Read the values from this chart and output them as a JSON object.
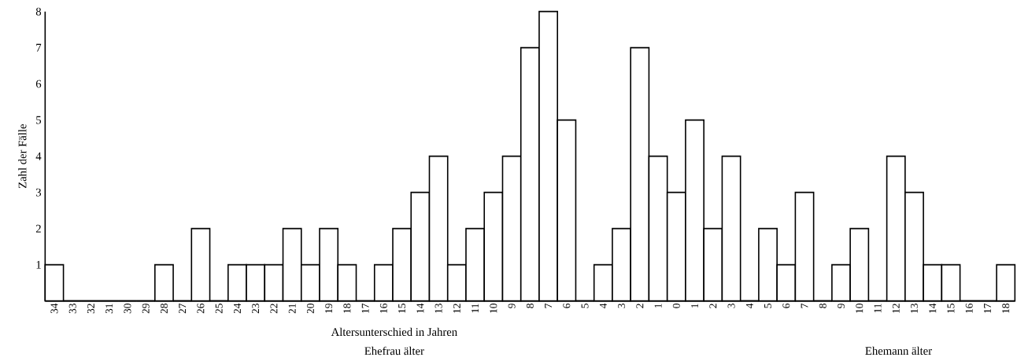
{
  "chart_data": {
    "type": "bar",
    "ylabel": "Zahl der Fälle",
    "xlabel": "Altersunterschied in Jahren",
    "annotations": [
      "Ehefrau älter",
      "Ehemann älter"
    ],
    "categories": [
      "34",
      "33",
      "32",
      "31",
      "30",
      "29",
      "28",
      "27",
      "26",
      "25",
      "24",
      "23",
      "22",
      "21",
      "20",
      "19",
      "18",
      "17",
      "16",
      "15",
      "14",
      "13",
      "12",
      "11",
      "10",
      "9",
      "8",
      "7",
      "6",
      "5",
      "4",
      "3",
      "2",
      "1",
      "0",
      "1",
      "2",
      "3",
      "4",
      "5",
      "6",
      "7",
      "8",
      "9",
      "10",
      "11",
      "12",
      "13",
      "14",
      "15",
      "16",
      "17",
      "18"
    ],
    "values": [
      1,
      0,
      0,
      0,
      0,
      0,
      1,
      0,
      2,
      0,
      1,
      1,
      1,
      2,
      1,
      2,
      1,
      0,
      1,
      2,
      3,
      4,
      1,
      2,
      3,
      4,
      7,
      8,
      5,
      0,
      1,
      2,
      7,
      4,
      3,
      5,
      2,
      4,
      0,
      2,
      1,
      3,
      0,
      1,
      2,
      0,
      4,
      3,
      1,
      1,
      0,
      0,
      1
    ],
    "color": "#ffffff",
    "ylim": [
      0,
      8
    ],
    "yticks": [
      1,
      2,
      3,
      4,
      5,
      6,
      7,
      8
    ]
  }
}
